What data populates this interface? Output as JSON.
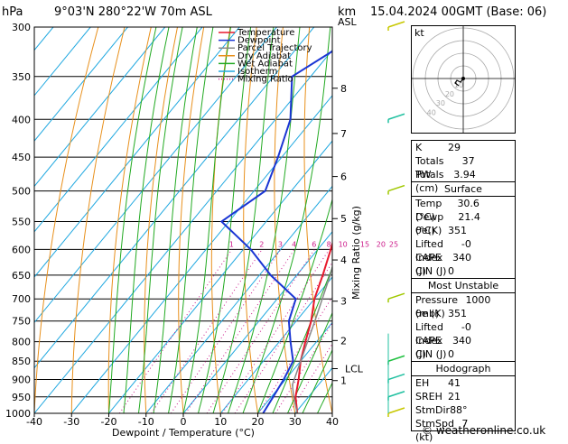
{
  "header": {
    "pressure_unit": "hPa",
    "location": "9°03'N 280°22'W 70m ASL",
    "height_unit": "km",
    "height_unit2": "ASL",
    "datetime": "15.04.2024 00GMT (Base: 06)"
  },
  "chart_data": {
    "type": "skew-t log-p",
    "xlabel": "Dewpoint / Temperature (°C)",
    "ylabel": "Mixing Ratio (g/kg)",
    "xlim": [
      -40,
      40
    ],
    "x_ticks": [
      -40,
      -30,
      -20,
      -10,
      0,
      10,
      20,
      30,
      40
    ],
    "ylim_hpa": [
      300,
      1000
    ],
    "pressure_levels": [
      300,
      350,
      400,
      450,
      500,
      550,
      600,
      650,
      700,
      750,
      800,
      850,
      900,
      950,
      1000
    ],
    "height_ticks_km": [
      1,
      2,
      3,
      4,
      5,
      6,
      7,
      8
    ],
    "lcl_label": "LCL",
    "mixing_ratio_labels": [
      "1",
      "2",
      "3",
      "4",
      "6",
      "8",
      "10",
      "15",
      "20",
      "25"
    ],
    "legend": [
      "Temperature",
      "Dewpoint",
      "Parcel Trajectory",
      "Dry Adiabat",
      "Wet Adiabat",
      "Isotherm",
      "Mixing Ratio"
    ],
    "series": [
      {
        "name": "Temperature",
        "points": [
          [
            1000,
            30.6
          ],
          [
            950,
            26.5
          ],
          [
            900,
            23.5
          ],
          [
            850,
            20
          ],
          [
            800,
            17
          ],
          [
            750,
            14
          ],
          [
            700,
            10
          ],
          [
            650,
            7
          ],
          [
            600,
            3.5
          ],
          [
            550,
            -0.5
          ],
          [
            500,
            -4.5
          ],
          [
            450,
            -10
          ],
          [
            400,
            -16
          ],
          [
            350,
            -24
          ]
        ]
      },
      {
        "name": "Dewpoint",
        "points": [
          [
            1000,
            21.4
          ],
          [
            950,
            20.5
          ],
          [
            900,
            19.5
          ],
          [
            850,
            18
          ],
          [
            800,
            13
          ],
          [
            750,
            8
          ],
          [
            700,
            5
          ],
          [
            650,
            -7
          ],
          [
            600,
            -18
          ],
          [
            550,
            -32
          ],
          [
            500,
            -27
          ],
          [
            450,
            -31
          ],
          [
            400,
            -36
          ],
          [
            350,
            -45
          ],
          [
            320,
            -39
          ],
          [
            300,
            -32
          ]
        ]
      },
      {
        "name": "Parcel Trajectory",
        "points": [
          [
            1000,
            30.6
          ],
          [
            950,
            26
          ],
          [
            915,
            23
          ],
          [
            850,
            20
          ],
          [
            750,
            15
          ],
          [
            650,
            9
          ],
          [
            550,
            1
          ],
          [
            450,
            -8
          ],
          [
            350,
            -22
          ]
        ]
      }
    ],
    "colors": {
      "Temperature": "#e8192c",
      "Dewpoint": "#1a35d4",
      "Parcel Trajectory": "#888888",
      "Dry Adiabat": "#e8901c",
      "Wet Adiabat": "#22aa22",
      "Isotherm": "#20a8e0",
      "Mixing Ratio": "#cc1a8a"
    }
  },
  "hodograph": {
    "label": "kt",
    "rings": [
      "10",
      "20",
      "30",
      "40"
    ]
  },
  "indices": {
    "rows": [
      [
        "K",
        "29"
      ],
      [
        "Totals Totals",
        "37"
      ],
      [
        "PW (cm)",
        "3.94"
      ]
    ],
    "surface": {
      "title": "Surface",
      "rows": [
        [
          "Temp (°C)",
          "30.6"
        ],
        [
          "Dewp (°C)",
          "21.4"
        ],
        [
          "θe(K)",
          "351"
        ],
        [
          "Lifted Index",
          "-0"
        ],
        [
          "CAPE (J)",
          "340"
        ],
        [
          "CIN (J)",
          "0"
        ]
      ]
    },
    "most_unstable": {
      "title": "Most Unstable",
      "rows": [
        [
          "Pressure (mb)",
          "1000"
        ],
        [
          "θe (K)",
          "351"
        ],
        [
          "Lifted Index",
          "-0"
        ],
        [
          "CAPE (J)",
          "340"
        ],
        [
          "CIN (J)",
          "0"
        ]
      ]
    },
    "hodograph": {
      "title": "Hodograph",
      "rows": [
        [
          "EH",
          "41"
        ],
        [
          "SREH",
          "21"
        ],
        [
          "StmDir",
          "88°"
        ],
        [
          "StmSpd (kt)",
          "7"
        ]
      ]
    }
  },
  "credit": "© weatheronline.co.uk"
}
